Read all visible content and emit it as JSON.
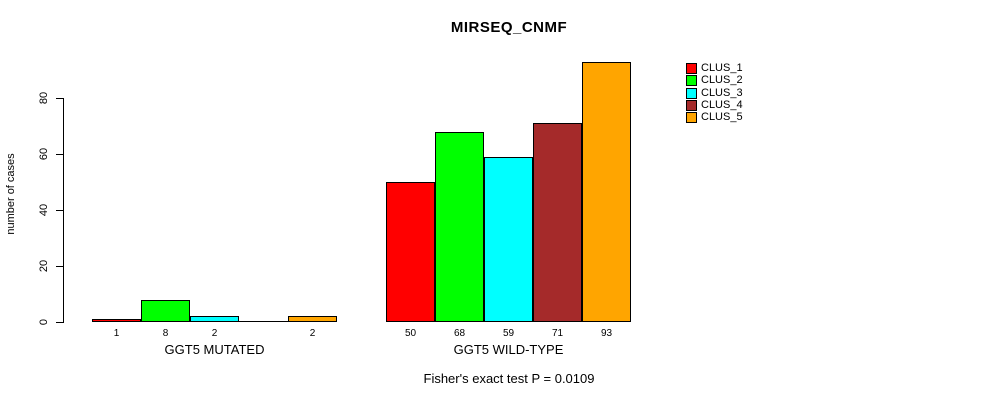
{
  "chart_data": {
    "type": "bar",
    "title": "MIRSEQ_CNMF",
    "xlabel": "",
    "ylabel": "number of cases",
    "groups": [
      "GGT5 MUTATED",
      "GGT5 WILD-TYPE"
    ],
    "series": [
      {
        "name": "CLUS_1",
        "color": "#FF0000",
        "values": [
          1,
          50
        ]
      },
      {
        "name": "CLUS_2",
        "color": "#00FF00",
        "values": [
          8,
          68
        ]
      },
      {
        "name": "CLUS_3",
        "color": "#00FFFF",
        "values": [
          2,
          59
        ]
      },
      {
        "name": "CLUS_4",
        "color": "#A52A2A",
        "values": [
          0,
          71
        ]
      },
      {
        "name": "CLUS_5",
        "color": "#FFA500",
        "values": [
          2,
          93
        ]
      }
    ],
    "bar_labels": [
      [
        "1",
        "8",
        "2",
        "",
        "2"
      ],
      [
        "50",
        "68",
        "59",
        "71",
        "93"
      ]
    ],
    "yticks": [
      0,
      20,
      40,
      60,
      80
    ],
    "ylim": [
      0,
      93
    ],
    "grid": false,
    "legend_position": "right",
    "annotation": "Fisher's exact test P = 0.0109"
  }
}
